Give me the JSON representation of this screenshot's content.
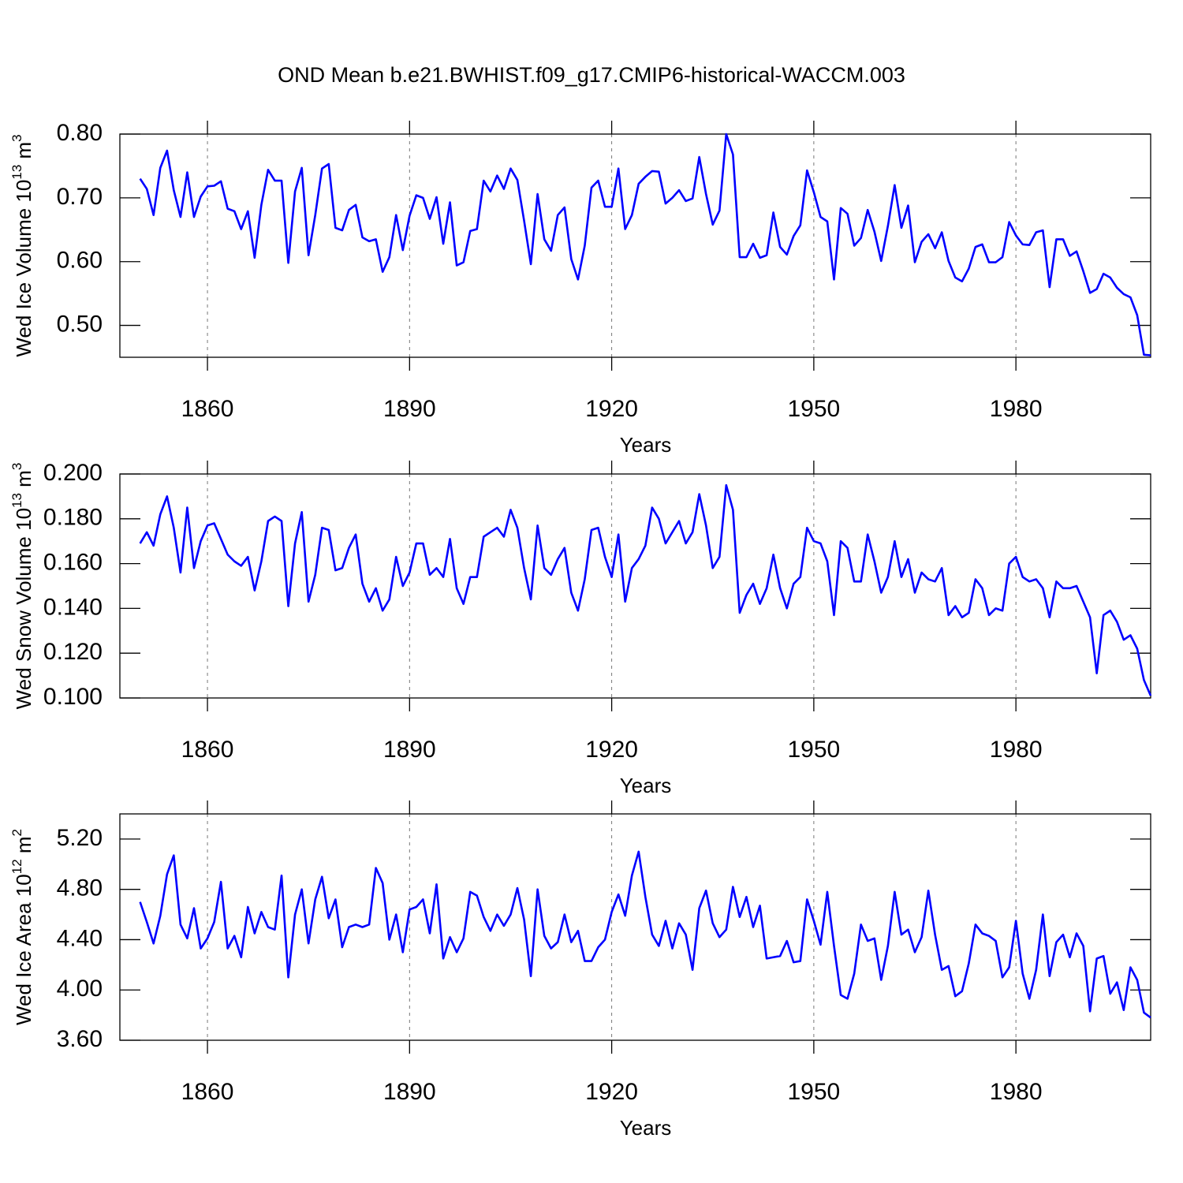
{
  "chart_data": [
    {
      "type": "line",
      "title": "OND Mean b.e21.BWHIST.f09_g17.CMIP6-historical-WACCM.003",
      "xlabel": "Years",
      "ylabel": [
        "Wed Ice Volume 10",
        "13",
        " m",
        "3"
      ],
      "x": [
        1850,
        1851,
        1852,
        1853,
        1854,
        1855,
        1856,
        1857,
        1858,
        1859,
        1860,
        1861,
        1862,
        1863,
        1864,
        1865,
        1866,
        1867,
        1868,
        1869,
        1870,
        1871,
        1872,
        1873,
        1874,
        1875,
        1876,
        1877,
        1878,
        1879,
        1880,
        1881,
        1882,
        1883,
        1884,
        1885,
        1886,
        1887,
        1888,
        1889,
        1890,
        1891,
        1892,
        1893,
        1894,
        1895,
        1896,
        1897,
        1898,
        1899,
        1900,
        1901,
        1902,
        1903,
        1904,
        1905,
        1906,
        1907,
        1908,
        1909,
        1910,
        1911,
        1912,
        1913,
        1914,
        1915,
        1916,
        1917,
        1918,
        1919,
        1920,
        1921,
        1922,
        1923,
        1924,
        1925,
        1926,
        1927,
        1928,
        1929,
        1930,
        1931,
        1932,
        1933,
        1934,
        1935,
        1936,
        1937,
        1938,
        1939,
        1940,
        1941,
        1942,
        1943,
        1944,
        1945,
        1946,
        1947,
        1948,
        1949,
        1950,
        1951,
        1952,
        1953,
        1954,
        1955,
        1956,
        1957,
        1958,
        1959,
        1960,
        1961,
        1962,
        1963,
        1964,
        1965,
        1966,
        1967,
        1968,
        1969,
        1970,
        1971,
        1972,
        1973,
        1974,
        1975,
        1976,
        1977,
        1978,
        1979,
        1980,
        1981,
        1982,
        1983,
        1984,
        1985,
        1986,
        1987,
        1988,
        1989,
        1990,
        1991,
        1992,
        1993,
        1994,
        1995,
        1996,
        1997,
        1998,
        1999,
        2000
      ],
      "values": [
        0.73,
        0.714,
        0.673,
        0.747,
        0.774,
        0.712,
        0.67,
        0.74,
        0.67,
        0.702,
        0.718,
        0.719,
        0.726,
        0.683,
        0.679,
        0.651,
        0.679,
        0.606,
        0.689,
        0.744,
        0.727,
        0.727,
        0.598,
        0.71,
        0.747,
        0.61,
        0.673,
        0.746,
        0.753,
        0.653,
        0.649,
        0.681,
        0.689,
        0.638,
        0.632,
        0.635,
        0.584,
        0.607,
        0.673,
        0.618,
        0.672,
        0.704,
        0.7,
        0.667,
        0.701,
        0.628,
        0.693,
        0.594,
        0.599,
        0.648,
        0.651,
        0.727,
        0.71,
        0.735,
        0.714,
        0.746,
        0.728,
        0.664,
        0.596,
        0.706,
        0.635,
        0.617,
        0.673,
        0.685,
        0.604,
        0.572,
        0.625,
        0.716,
        0.727,
        0.686,
        0.686,
        0.746,
        0.651,
        0.673,
        0.722,
        0.733,
        0.742,
        0.741,
        0.691,
        0.7,
        0.712,
        0.695,
        0.699,
        0.764,
        0.706,
        0.658,
        0.68,
        0.8,
        0.768,
        0.607,
        0.607,
        0.628,
        0.606,
        0.61,
        0.677,
        0.623,
        0.611,
        0.64,
        0.657,
        0.743,
        0.709,
        0.67,
        0.663,
        0.572,
        0.684,
        0.675,
        0.625,
        0.637,
        0.681,
        0.647,
        0.601,
        0.656,
        0.72,
        0.653,
        0.688,
        0.599,
        0.631,
        0.643,
        0.621,
        0.646,
        0.601,
        0.575,
        0.569,
        0.589,
        0.623,
        0.627,
        0.599,
        0.599,
        0.607,
        0.662,
        0.641,
        0.627,
        0.626,
        0.646,
        0.649,
        0.56,
        0.635,
        0.635,
        0.609,
        0.616,
        0.585,
        0.551,
        0.557,
        0.581,
        0.575,
        0.559,
        0.549,
        0.544,
        0.516,
        0.454,
        0.453
      ],
      "color": "#0000ff",
      "xlim": [
        1847,
        2000
      ],
      "xticks": [
        1860,
        1890,
        1920,
        1950,
        1980
      ],
      "ylim": [
        0.45,
        0.8
      ],
      "yticks": [
        {
          "value": 0.5,
          "label": "0.50"
        },
        {
          "value": 0.6,
          "label": "0.60"
        },
        {
          "value": 0.7,
          "label": "0.70"
        },
        {
          "value": 0.8,
          "label": "0.80"
        }
      ],
      "grid": true
    },
    {
      "type": "line",
      "xlabel": "Years",
      "ylabel": [
        "Wed Snow Volume 10",
        "13",
        " m",
        "3"
      ],
      "x": [
        1850,
        1851,
        1852,
        1853,
        1854,
        1855,
        1856,
        1857,
        1858,
        1859,
        1860,
        1861,
        1862,
        1863,
        1864,
        1865,
        1866,
        1867,
        1868,
        1869,
        1870,
        1871,
        1872,
        1873,
        1874,
        1875,
        1876,
        1877,
        1878,
        1879,
        1880,
        1881,
        1882,
        1883,
        1884,
        1885,
        1886,
        1887,
        1888,
        1889,
        1890,
        1891,
        1892,
        1893,
        1894,
        1895,
        1896,
        1897,
        1898,
        1899,
        1900,
        1901,
        1902,
        1903,
        1904,
        1905,
        1906,
        1907,
        1908,
        1909,
        1910,
        1911,
        1912,
        1913,
        1914,
        1915,
        1916,
        1917,
        1918,
        1919,
        1920,
        1921,
        1922,
        1923,
        1924,
        1925,
        1926,
        1927,
        1928,
        1929,
        1930,
        1931,
        1932,
        1933,
        1934,
        1935,
        1936,
        1937,
        1938,
        1939,
        1940,
        1941,
        1942,
        1943,
        1944,
        1945,
        1946,
        1947,
        1948,
        1949,
        1950,
        1951,
        1952,
        1953,
        1954,
        1955,
        1956,
        1957,
        1958,
        1959,
        1960,
        1961,
        1962,
        1963,
        1964,
        1965,
        1966,
        1967,
        1968,
        1969,
        1970,
        1971,
        1972,
        1973,
        1974,
        1975,
        1976,
        1977,
        1978,
        1979,
        1980,
        1981,
        1982,
        1983,
        1984,
        1985,
        1986,
        1987,
        1988,
        1989,
        1990,
        1991,
        1992,
        1993,
        1994,
        1995,
        1996,
        1997,
        1998,
        1999,
        2000
      ],
      "values": [
        0.169,
        0.174,
        0.168,
        0.182,
        0.19,
        0.176,
        0.156,
        0.185,
        0.158,
        0.17,
        0.177,
        0.178,
        0.171,
        0.164,
        0.161,
        0.159,
        0.163,
        0.148,
        0.161,
        0.179,
        0.181,
        0.179,
        0.141,
        0.169,
        0.183,
        0.143,
        0.155,
        0.176,
        0.175,
        0.157,
        0.158,
        0.167,
        0.173,
        0.151,
        0.143,
        0.149,
        0.139,
        0.144,
        0.163,
        0.15,
        0.156,
        0.169,
        0.169,
        0.155,
        0.158,
        0.154,
        0.171,
        0.149,
        0.142,
        0.154,
        0.154,
        0.172,
        0.174,
        0.176,
        0.172,
        0.184,
        0.176,
        0.158,
        0.144,
        0.177,
        0.158,
        0.155,
        0.162,
        0.167,
        0.147,
        0.139,
        0.153,
        0.175,
        0.176,
        0.163,
        0.154,
        0.173,
        0.143,
        0.158,
        0.162,
        0.168,
        0.185,
        0.18,
        0.169,
        0.174,
        0.179,
        0.169,
        0.174,
        0.191,
        0.177,
        0.158,
        0.163,
        0.195,
        0.184,
        0.138,
        0.146,
        0.151,
        0.142,
        0.149,
        0.164,
        0.149,
        0.14,
        0.151,
        0.154,
        0.176,
        0.17,
        0.169,
        0.161,
        0.137,
        0.17,
        0.167,
        0.152,
        0.152,
        0.173,
        0.161,
        0.147,
        0.154,
        0.17,
        0.154,
        0.162,
        0.147,
        0.156,
        0.153,
        0.152,
        0.158,
        0.137,
        0.141,
        0.136,
        0.138,
        0.153,
        0.149,
        0.137,
        0.14,
        0.139,
        0.16,
        0.163,
        0.154,
        0.152,
        0.153,
        0.149,
        0.136,
        0.152,
        0.149,
        0.149,
        0.15,
        0.143,
        0.136,
        0.111,
        0.137,
        0.139,
        0.134,
        0.126,
        0.128,
        0.122,
        0.108,
        0.101
      ],
      "color": "#0000ff",
      "xlim": [
        1847,
        2000
      ],
      "xticks": [
        1860,
        1890,
        1920,
        1950,
        1980
      ],
      "ylim": [
        0.1,
        0.2
      ],
      "yticks": [
        {
          "value": 0.1,
          "label": "0.100"
        },
        {
          "value": 0.12,
          "label": "0.120"
        },
        {
          "value": 0.14,
          "label": "0.140"
        },
        {
          "value": 0.16,
          "label": "0.160"
        },
        {
          "value": 0.18,
          "label": "0.180"
        },
        {
          "value": 0.2,
          "label": "0.200"
        }
      ],
      "grid": true
    },
    {
      "type": "line",
      "xlabel": "Years",
      "ylabel": [
        "Wed Ice Area 10",
        "12",
        " m",
        "2"
      ],
      "x": [
        1850,
        1851,
        1852,
        1853,
        1854,
        1855,
        1856,
        1857,
        1858,
        1859,
        1860,
        1861,
        1862,
        1863,
        1864,
        1865,
        1866,
        1867,
        1868,
        1869,
        1870,
        1871,
        1872,
        1873,
        1874,
        1875,
        1876,
        1877,
        1878,
        1879,
        1880,
        1881,
        1882,
        1883,
        1884,
        1885,
        1886,
        1887,
        1888,
        1889,
        1890,
        1891,
        1892,
        1893,
        1894,
        1895,
        1896,
        1897,
        1898,
        1899,
        1900,
        1901,
        1902,
        1903,
        1904,
        1905,
        1906,
        1907,
        1908,
        1909,
        1910,
        1911,
        1912,
        1913,
        1914,
        1915,
        1916,
        1917,
        1918,
        1919,
        1920,
        1921,
        1922,
        1923,
        1924,
        1925,
        1926,
        1927,
        1928,
        1929,
        1930,
        1931,
        1932,
        1933,
        1934,
        1935,
        1936,
        1937,
        1938,
        1939,
        1940,
        1941,
        1942,
        1943,
        1944,
        1945,
        1946,
        1947,
        1948,
        1949,
        1950,
        1951,
        1952,
        1953,
        1954,
        1955,
        1956,
        1957,
        1958,
        1959,
        1960,
        1961,
        1962,
        1963,
        1964,
        1965,
        1966,
        1967,
        1968,
        1969,
        1970,
        1971,
        1972,
        1973,
        1974,
        1975,
        1976,
        1977,
        1978,
        1979,
        1980,
        1981,
        1982,
        1983,
        1984,
        1985,
        1986,
        1987,
        1988,
        1989,
        1990,
        1991,
        1992,
        1993,
        1994,
        1995,
        1996,
        1997,
        1998,
        1999,
        2000
      ],
      "values": [
        4.7,
        4.54,
        4.37,
        4.59,
        4.92,
        5.07,
        4.52,
        4.41,
        4.65,
        4.33,
        4.41,
        4.54,
        4.86,
        4.33,
        4.43,
        4.26,
        4.66,
        4.45,
        4.62,
        4.5,
        4.48,
        4.91,
        4.1,
        4.6,
        4.8,
        4.37,
        4.72,
        4.9,
        4.57,
        4.72,
        4.34,
        4.5,
        4.52,
        4.5,
        4.52,
        4.97,
        4.85,
        4.4,
        4.6,
        4.3,
        4.64,
        4.66,
        4.72,
        4.45,
        4.84,
        4.25,
        4.42,
        4.3,
        4.41,
        4.78,
        4.75,
        4.58,
        4.47,
        4.6,
        4.51,
        4.6,
        4.81,
        4.56,
        4.11,
        4.8,
        4.43,
        4.33,
        4.38,
        4.6,
        4.38,
        4.47,
        4.23,
        4.23,
        4.34,
        4.4,
        4.62,
        4.76,
        4.59,
        4.91,
        5.1,
        4.74,
        4.44,
        4.35,
        4.55,
        4.33,
        4.53,
        4.44,
        4.16,
        4.65,
        4.79,
        4.53,
        4.42,
        4.48,
        4.82,
        4.58,
        4.74,
        4.5,
        4.67,
        4.25,
        4.26,
        4.27,
        4.39,
        4.22,
        4.23,
        4.72,
        4.55,
        4.36,
        4.78,
        4.35,
        3.96,
        3.93,
        4.13,
        4.52,
        4.39,
        4.41,
        4.08,
        4.35,
        4.78,
        4.44,
        4.48,
        4.3,
        4.42,
        4.79,
        4.44,
        4.16,
        4.19,
        3.95,
        3.99,
        4.21,
        4.52,
        4.45,
        4.43,
        4.39,
        4.1,
        4.18,
        4.55,
        4.13,
        3.93,
        4.16,
        4.6,
        4.11,
        4.38,
        4.44,
        4.26,
        4.45,
        4.35,
        3.83,
        4.25,
        4.27,
        3.97,
        4.06,
        3.84,
        4.18,
        4.08,
        3.82,
        3.78
      ],
      "color": "#0000ff",
      "xlim": [
        1847,
        2000
      ],
      "xticks": [
        1860,
        1890,
        1920,
        1950,
        1980
      ],
      "ylim": [
        3.6,
        5.4
      ],
      "yticks": [
        {
          "value": 3.6,
          "label": "3.60"
        },
        {
          "value": 4.0,
          "label": "4.00"
        },
        {
          "value": 4.4,
          "label": "4.40"
        },
        {
          "value": 4.8,
          "label": "4.80"
        },
        {
          "value": 5.2,
          "label": "5.20"
        }
      ],
      "grid": true
    }
  ]
}
